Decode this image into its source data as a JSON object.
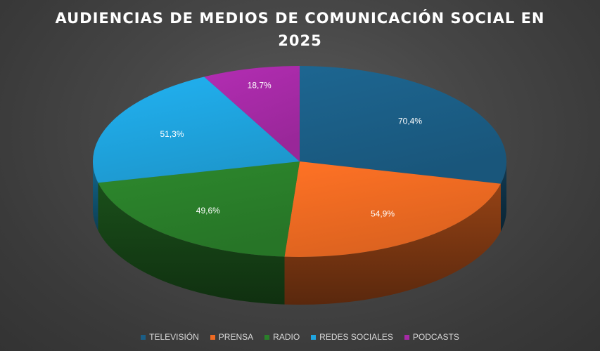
{
  "chart_data": {
    "type": "pie",
    "title": "AUDIENCIAS DE MEDIOS DE COMUNICACIÓN SOCIAL EN 2025",
    "categories": [
      "TELEVISIÓN",
      "PRENSA",
      "RADIO",
      "REDES SOCIALES",
      "PODCASTS"
    ],
    "values": [
      70.4,
      54.9,
      49.6,
      51.3,
      18.7
    ],
    "value_labels": [
      "70,4%",
      "54,9%",
      "49,6%",
      "51,3%",
      "18,7%"
    ],
    "colors": [
      "#1b5e86",
      "#ee6a22",
      "#2a7f2a",
      "#1fa5e0",
      "#a62aa6"
    ],
    "legend_position": "bottom",
    "style": "3d"
  }
}
